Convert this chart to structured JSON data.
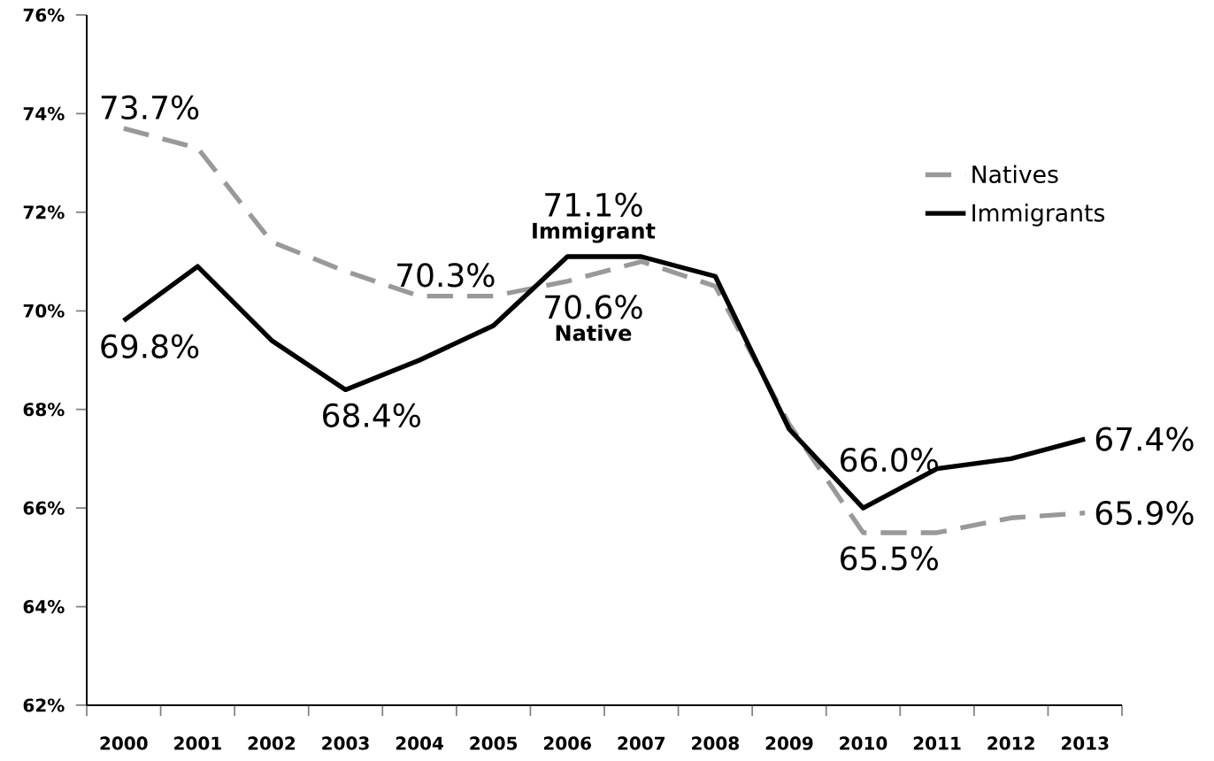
{
  "chart_data": {
    "type": "line",
    "categories": [
      "2000",
      "2001",
      "2002",
      "2003",
      "2004",
      "2005",
      "2006",
      "2007",
      "2008",
      "2009",
      "2010",
      "2011",
      "2012",
      "2013"
    ],
    "series": [
      {
        "name": "Natives",
        "color": "#999999",
        "line_style": "dashed",
        "values": [
          73.7,
          73.3,
          71.4,
          70.8,
          70.3,
          70.3,
          70.6,
          71.0,
          70.5,
          67.7,
          65.5,
          65.5,
          65.8,
          65.9
        ],
        "value_labels": [
          "73.7%",
          null,
          null,
          null,
          "70.3%",
          null,
          "70.6%",
          null,
          null,
          null,
          "65.5%",
          null,
          null,
          "65.9%"
        ]
      },
      {
        "name": "Immigrants",
        "color": "#000000",
        "line_style": "solid",
        "values": [
          69.8,
          70.9,
          69.4,
          68.4,
          69.0,
          69.7,
          71.1,
          71.1,
          70.7,
          67.6,
          66.0,
          66.8,
          67.0,
          67.4
        ],
        "value_labels": [
          "69.8%",
          null,
          null,
          "68.4%",
          null,
          null,
          "71.1%",
          null,
          null,
          null,
          "66.0%",
          null,
          null,
          "67.4%"
        ]
      }
    ],
    "annotations": [
      {
        "text": "Immigrant",
        "x": "2006",
        "y": 71.1
      },
      {
        "text": "Native",
        "x": "2006",
        "y": 70.6
      }
    ],
    "ylim": [
      62,
      76
    ],
    "yticks": [
      {
        "value": 62,
        "label": "62%"
      },
      {
        "value": 64,
        "label": "64%"
      },
      {
        "value": 66,
        "label": "66%"
      },
      {
        "value": 68,
        "label": "68%"
      },
      {
        "value": 70,
        "label": "70%"
      },
      {
        "value": 72,
        "label": "72%"
      },
      {
        "value": 74,
        "label": "74%"
      },
      {
        "value": 76,
        "label": "76%"
      }
    ],
    "grid": false,
    "legend": "top right",
    "marker": "none"
  }
}
